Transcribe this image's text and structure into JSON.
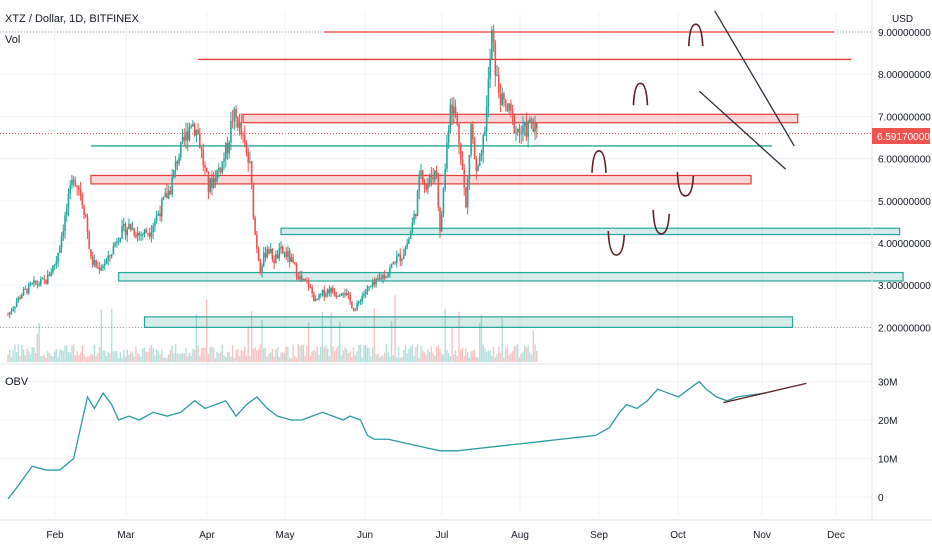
{
  "header": {
    "title": "XTZ / Dollar, 1D, BITFINEX",
    "volume_label": "Vol",
    "currency": "USD"
  },
  "obv_label": "OBV",
  "last_price_label": "6.59170000",
  "colors": {
    "up": "#26a69a",
    "down": "#ef5350",
    "obv_line": "#2a9ba0",
    "resistance": "#e53935",
    "support": "#26a69a",
    "price_tag": "#ef5350",
    "grid": "#f0f3fa"
  },
  "chart_data": [
    {
      "type": "candlestick",
      "title": "XTZ / Dollar, 1D, BITFINEX",
      "ylabel": "USD",
      "ylim": [
        1.0,
        9.5
      ],
      "y_ticks": [
        "2.00000000",
        "3.00000000",
        "4.00000000",
        "5.00000000",
        "6.00000000",
        "7.00000000",
        "8.00000000",
        "9.00000000"
      ],
      "x_ticks": [
        "Feb",
        "Mar",
        "Apr",
        "May",
        "Jun",
        "Jul",
        "Aug",
        "Sep",
        "Oct",
        "Nov",
        "Dec"
      ],
      "last_price": 6.5917,
      "close_path": [
        {
          "d": 0,
          "v": 2.3
        },
        {
          "d": 8,
          "v": 2.8
        },
        {
          "d": 14,
          "v": 3.0
        },
        {
          "d": 22,
          "v": 3.1
        },
        {
          "d": 28,
          "v": 3.6
        },
        {
          "d": 34,
          "v": 4.8
        },
        {
          "d": 38,
          "v": 5.6
        },
        {
          "d": 42,
          "v": 5.2
        },
        {
          "d": 45,
          "v": 4.6
        },
        {
          "d": 48,
          "v": 3.6
        },
        {
          "d": 52,
          "v": 3.4
        },
        {
          "d": 58,
          "v": 3.6
        },
        {
          "d": 64,
          "v": 4.2
        },
        {
          "d": 70,
          "v": 4.4
        },
        {
          "d": 76,
          "v": 4.2
        },
        {
          "d": 82,
          "v": 4.3
        },
        {
          "d": 88,
          "v": 4.8
        },
        {
          "d": 94,
          "v": 5.3
        },
        {
          "d": 98,
          "v": 6.0
        },
        {
          "d": 102,
          "v": 6.4
        },
        {
          "d": 106,
          "v": 6.9
        },
        {
          "d": 110,
          "v": 6.6
        },
        {
          "d": 113,
          "v": 5.9
        },
        {
          "d": 116,
          "v": 5.3
        },
        {
          "d": 120,
          "v": 5.6
        },
        {
          "d": 124,
          "v": 5.9
        },
        {
          "d": 127,
          "v": 6.3
        },
        {
          "d": 130,
          "v": 7.0
        },
        {
          "d": 133,
          "v": 6.9
        },
        {
          "d": 136,
          "v": 6.4
        },
        {
          "d": 140,
          "v": 5.8
        },
        {
          "d": 143,
          "v": 4.2
        },
        {
          "d": 146,
          "v": 3.4
        },
        {
          "d": 150,
          "v": 3.9
        },
        {
          "d": 154,
          "v": 3.6
        },
        {
          "d": 158,
          "v": 3.8
        },
        {
          "d": 162,
          "v": 3.7
        },
        {
          "d": 166,
          "v": 3.4
        },
        {
          "d": 170,
          "v": 3.1
        },
        {
          "d": 174,
          "v": 3.0
        },
        {
          "d": 178,
          "v": 2.6
        },
        {
          "d": 182,
          "v": 2.8
        },
        {
          "d": 186,
          "v": 2.9
        },
        {
          "d": 190,
          "v": 2.8
        },
        {
          "d": 194,
          "v": 2.9
        },
        {
          "d": 198,
          "v": 2.6
        },
        {
          "d": 201,
          "v": 2.4
        },
        {
          "d": 204,
          "v": 2.7
        },
        {
          "d": 208,
          "v": 2.9
        },
        {
          "d": 212,
          "v": 3.0
        },
        {
          "d": 216,
          "v": 3.2
        },
        {
          "d": 220,
          "v": 3.3
        },
        {
          "d": 224,
          "v": 3.6
        },
        {
          "d": 228,
          "v": 3.7
        },
        {
          "d": 232,
          "v": 4.1
        },
        {
          "d": 236,
          "v": 4.8
        },
        {
          "d": 239,
          "v": 5.8
        },
        {
          "d": 242,
          "v": 5.3
        },
        {
          "d": 245,
          "v": 5.6
        },
        {
          "d": 248,
          "v": 5.7
        },
        {
          "d": 250,
          "v": 4.2
        },
        {
          "d": 253,
          "v": 5.8
        },
        {
          "d": 256,
          "v": 7.4
        },
        {
          "d": 259,
          "v": 7.0
        },
        {
          "d": 262,
          "v": 6.2
        },
        {
          "d": 265,
          "v": 4.8
        },
        {
          "d": 268,
          "v": 6.8
        },
        {
          "d": 271,
          "v": 5.6
        },
        {
          "d": 274,
          "v": 6.0
        },
        {
          "d": 277,
          "v": 7.2
        },
        {
          "d": 280,
          "v": 8.9
        },
        {
          "d": 283,
          "v": 7.8
        },
        {
          "d": 286,
          "v": 7.3
        },
        {
          "d": 290,
          "v": 7.1
        },
        {
          "d": 294,
          "v": 6.7
        },
        {
          "d": 298,
          "v": 6.6
        },
        {
          "d": 302,
          "v": 6.8
        },
        {
          "d": 306,
          "v": 6.59
        }
      ],
      "levels": [
        {
          "kind": "resistance-line",
          "y": 9.0,
          "from_day": 183,
          "to_day": 478
        },
        {
          "kind": "resistance-line",
          "y": 8.35,
          "from_day": 110,
          "to_day": 488
        },
        {
          "kind": "resistance-zone",
          "y1": 7.05,
          "y2": 6.85,
          "from_day": 136,
          "to_day": 457
        },
        {
          "kind": "resistance-zone",
          "y1": 5.6,
          "y2": 5.4,
          "from_day": 48,
          "to_day": 430
        },
        {
          "kind": "support-line",
          "y": 6.3,
          "from_day": 48,
          "to_day": 442
        },
        {
          "kind": "support-zone",
          "y1": 4.35,
          "y2": 4.2,
          "from_day": 158,
          "to_day": 516
        },
        {
          "kind": "support-zone",
          "y1": 3.3,
          "y2": 3.1,
          "from_day": 64,
          "to_day": 518
        },
        {
          "kind": "support-zone",
          "y1": 2.25,
          "y2": 2.0,
          "from_day": 79,
          "to_day": 454
        }
      ],
      "trendlines": [
        {
          "from": [
            409,
            9.5
          ],
          "to": [
            455,
            6.3
          ]
        },
        {
          "from": [
            400,
            7.6
          ],
          "to": [
            450,
            5.75
          ]
        }
      ]
    },
    {
      "type": "line",
      "title": "OBV",
      "ylim": [
        -5,
        32
      ],
      "y_ticks": [
        "0",
        "10M",
        "20M",
        "30M"
      ],
      "series": [
        {
          "values": [
            {
              "d": 0,
              "v": -0.5
            },
            {
              "d": 6,
              "v": 3
            },
            {
              "d": 14,
              "v": 8
            },
            {
              "d": 22,
              "v": 7
            },
            {
              "d": 30,
              "v": 7
            },
            {
              "d": 38,
              "v": 10
            },
            {
              "d": 42,
              "v": 18
            },
            {
              "d": 46,
              "v": 26
            },
            {
              "d": 50,
              "v": 23
            },
            {
              "d": 55,
              "v": 27
            },
            {
              "d": 60,
              "v": 24
            },
            {
              "d": 64,
              "v": 20
            },
            {
              "d": 70,
              "v": 21
            },
            {
              "d": 76,
              "v": 20
            },
            {
              "d": 84,
              "v": 22
            },
            {
              "d": 92,
              "v": 21
            },
            {
              "d": 100,
              "v": 22
            },
            {
              "d": 108,
              "v": 25
            },
            {
              "d": 114,
              "v": 23
            },
            {
              "d": 120,
              "v": 24
            },
            {
              "d": 126,
              "v": 25
            },
            {
              "d": 132,
              "v": 21
            },
            {
              "d": 138,
              "v": 24
            },
            {
              "d": 144,
              "v": 26
            },
            {
              "d": 150,
              "v": 23
            },
            {
              "d": 156,
              "v": 21
            },
            {
              "d": 164,
              "v": 20
            },
            {
              "d": 170,
              "v": 20
            },
            {
              "d": 176,
              "v": 21
            },
            {
              "d": 182,
              "v": 22
            },
            {
              "d": 188,
              "v": 21
            },
            {
              "d": 194,
              "v": 20
            },
            {
              "d": 198,
              "v": 21
            },
            {
              "d": 204,
              "v": 20
            },
            {
              "d": 208,
              "v": 16
            },
            {
              "d": 212,
              "v": 15
            },
            {
              "d": 220,
              "v": 15
            },
            {
              "d": 230,
              "v": 14
            },
            {
              "d": 240,
              "v": 13
            },
            {
              "d": 250,
              "v": 12
            },
            {
              "d": 260,
              "v": 12
            },
            {
              "d": 270,
              "v": 12.5
            },
            {
              "d": 280,
              "v": 13
            },
            {
              "d": 290,
              "v": 13.5
            },
            {
              "d": 300,
              "v": 14
            },
            {
              "d": 310,
              "v": 14.5
            },
            {
              "d": 320,
              "v": 15
            },
            {
              "d": 330,
              "v": 15.5
            },
            {
              "d": 340,
              "v": 16
            },
            {
              "d": 348,
              "v": 18
            },
            {
              "d": 354,
              "v": 22
            },
            {
              "d": 358,
              "v": 24
            },
            {
              "d": 364,
              "v": 23
            },
            {
              "d": 370,
              "v": 25
            },
            {
              "d": 376,
              "v": 28
            },
            {
              "d": 382,
              "v": 27
            },
            {
              "d": 388,
              "v": 26
            },
            {
              "d": 394,
              "v": 28
            },
            {
              "d": 400,
              "v": 30
            },
            {
              "d": 404,
              "v": 28
            },
            {
              "d": 410,
              "v": 26
            },
            {
              "d": 416,
              "v": 25
            },
            {
              "d": 422,
              "v": 26
            },
            {
              "d": 430,
              "v": 26.5
            },
            {
              "d": 438,
              "v": 27
            }
          ]
        }
      ],
      "trendline": {
        "from": [
          414,
          24.5
        ],
        "to": [
          462,
          29.5
        ]
      }
    },
    {
      "type": "bar",
      "title": "Vol",
      "note": "daily volume bars"
    }
  ]
}
